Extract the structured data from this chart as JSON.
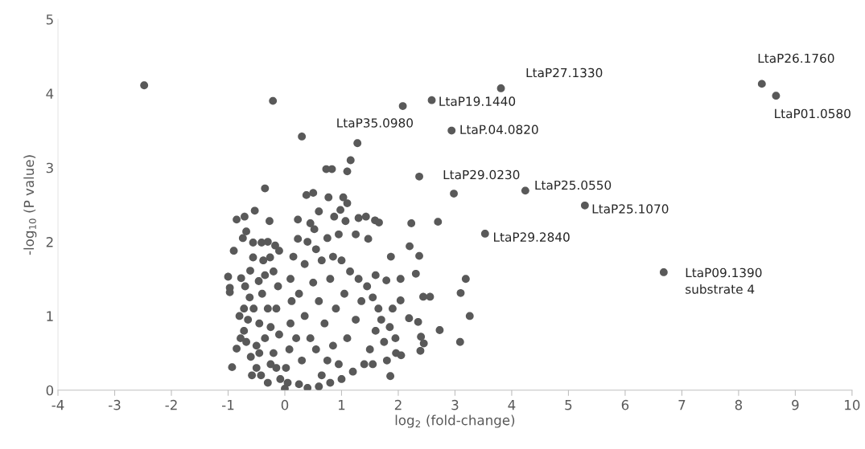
{
  "chart_data": {
    "type": "scatter",
    "xlabel": "log$_{2}$ (fold-change)",
    "ylabel": "-log$_{10}$ (P value)",
    "xlim": [
      -4,
      10
    ],
    "ylim": [
      0,
      5
    ],
    "xticks": [
      -4,
      -3,
      -2,
      -1,
      0,
      1,
      2,
      3,
      4,
      5,
      6,
      7,
      8,
      9,
      10
    ],
    "yticks": [
      0,
      1,
      2,
      3,
      4,
      5
    ],
    "grid": false,
    "marker": "circle",
    "series": [
      {
        "color": "#595959",
        "x": [
          -0.93,
          -0.85,
          -0.97,
          -0.97,
          -1.0,
          -0.77,
          -0.9,
          -0.85,
          -0.71,
          -0.74,
          -0.68,
          -0.53,
          -0.35,
          -0.27,
          -0.56,
          -0.41,
          -0.17,
          -0.1,
          -0.56,
          -0.26,
          -0.61,
          -0.46,
          -0.7,
          -0.62,
          -0.72,
          -0.65,
          -0.72,
          -0.68,
          -0.6,
          -0.5,
          -0.42,
          -0.3,
          -0.55,
          -0.45,
          -0.35,
          -0.5,
          -0.4,
          -0.3,
          -0.25,
          -0.2,
          -0.15,
          -0.12,
          -0.2,
          -0.35,
          -0.15,
          -0.1,
          -0.08,
          -0.25,
          -0.45,
          -0.58,
          -0.78,
          -0.8,
          -0.38,
          -0.3,
          0.0,
          0.05,
          0.02,
          0.08,
          0.1,
          0.12,
          0.1,
          0.15,
          0.23,
          0.23,
          0.3,
          0.38,
          0.5,
          0.6,
          0.45,
          0.52,
          0.4,
          0.55,
          0.35,
          0.65,
          0.75,
          0.77,
          0.73,
          0.83,
          0.87,
          0.95,
          0.98,
          1.03,
          1.1,
          1.07,
          1.1,
          1.16,
          1.28,
          1.3,
          1.43,
          1.59,
          1.66,
          1.47,
          1.25,
          0.85,
          1.0,
          1.15,
          1.3,
          1.45,
          1.55,
          1.65,
          1.7,
          1.6,
          1.75,
          1.5,
          1.4,
          1.55,
          1.2,
          1.0,
          0.8,
          0.6,
          0.4,
          0.25,
          0.3,
          0.45,
          0.35,
          0.25,
          0.5,
          0.6,
          0.7,
          0.85,
          0.95,
          0.75,
          1.1,
          1.25,
          1.35,
          1.05,
          0.9,
          0.8,
          0.65,
          0.55,
          0.2,
          1.85,
          1.9,
          1.95,
          1.8,
          1.86,
          1.96,
          2.05,
          2.04,
          2.19,
          2.35,
          2.4,
          2.45,
          2.39,
          2.44,
          2.56,
          2.31,
          2.04,
          1.79,
          1.87,
          2.2,
          2.37,
          2.23,
          2.7,
          2.73,
          3.09,
          3.26,
          3.1,
          3.19,
          2.37,
          1.6,
          -2.48,
          -0.21,
          2.08,
          2.59,
          3.81,
          2.94,
          2.98,
          4.24,
          5.29,
          3.53,
          6.68,
          8.41,
          8.66
        ],
        "values": [
          0.31,
          0.56,
          1.38,
          1.32,
          1.53,
          1.51,
          1.88,
          2.3,
          2.34,
          2.05,
          2.14,
          2.42,
          2.72,
          2.28,
          1.99,
          1.99,
          1.95,
          1.88,
          1.79,
          1.79,
          1.61,
          1.47,
          1.4,
          1.25,
          1.1,
          0.95,
          0.8,
          0.65,
          0.45,
          0.3,
          0.2,
          0.1,
          1.1,
          0.9,
          0.7,
          0.6,
          1.3,
          1.1,
          0.85,
          0.5,
          0.3,
          1.4,
          1.6,
          1.55,
          1.1,
          0.75,
          0.15,
          0.35,
          0.5,
          0.2,
          0.7,
          1.0,
          1.75,
          2.0,
          0.02,
          0.1,
          0.3,
          0.55,
          0.9,
          1.2,
          1.5,
          1.8,
          2.04,
          2.3,
          3.42,
          2.63,
          2.66,
          2.41,
          2.25,
          2.17,
          2.0,
          1.9,
          1.7,
          1.75,
          2.05,
          2.6,
          2.98,
          2.98,
          2.34,
          2.1,
          2.43,
          2.6,
          2.52,
          2.28,
          2.95,
          3.1,
          3.33,
          2.32,
          2.34,
          2.29,
          2.26,
          2.04,
          2.1,
          1.8,
          1.75,
          1.6,
          1.5,
          1.4,
          1.25,
          1.1,
          0.95,
          0.8,
          0.65,
          0.55,
          0.35,
          0.35,
          0.25,
          0.15,
          0.1,
          0.05,
          0.03,
          0.08,
          0.4,
          0.7,
          1.0,
          1.3,
          1.45,
          1.2,
          0.9,
          0.6,
          0.35,
          0.4,
          0.7,
          0.95,
          1.2,
          1.3,
          1.1,
          1.5,
          0.2,
          0.55,
          0.7,
          0.85,
          1.1,
          0.7,
          0.4,
          0.19,
          0.5,
          0.47,
          1.21,
          0.97,
          0.92,
          0.72,
          0.63,
          0.53,
          1.26,
          1.26,
          1.57,
          1.5,
          1.48,
          1.8,
          1.94,
          1.81,
          2.25,
          2.27,
          0.81,
          0.65,
          1.0,
          1.31,
          1.5,
          2.88,
          1.55,
          4.11,
          3.9,
          3.83,
          3.91,
          4.07,
          3.5,
          2.65,
          2.69,
          2.49,
          2.11,
          1.59,
          4.13,
          3.97
        ]
      }
    ],
    "annotations": [
      {
        "text": "LtaP35.0980",
        "x": 2.08,
        "y": 3.83
      },
      {
        "text": "LtaP19.1440",
        "x": 2.59,
        "y": 3.91
      },
      {
        "text": "LtaP27.1330",
        "x": 3.81,
        "y": 4.07
      },
      {
        "text": "LtaP.04.0820",
        "x": 2.94,
        "y": 3.5
      },
      {
        "text": "LtaP29.0230",
        "x": 2.98,
        "y": 2.65
      },
      {
        "text": "LtaP25.0550",
        "x": 4.24,
        "y": 2.69
      },
      {
        "text": "LtaP25.1070",
        "x": 5.29,
        "y": 2.49
      },
      {
        "text": "LtaP29.2840",
        "x": 3.53,
        "y": 2.11
      },
      {
        "text": "LtaP09.1390\nsubstrate 4",
        "x": 6.68,
        "y": 1.59
      },
      {
        "text": "LtaP26.1760",
        "x": 8.41,
        "y": 4.13
      },
      {
        "text": "LtaP01.0580",
        "x": 8.66,
        "y": 3.97
      }
    ]
  }
}
